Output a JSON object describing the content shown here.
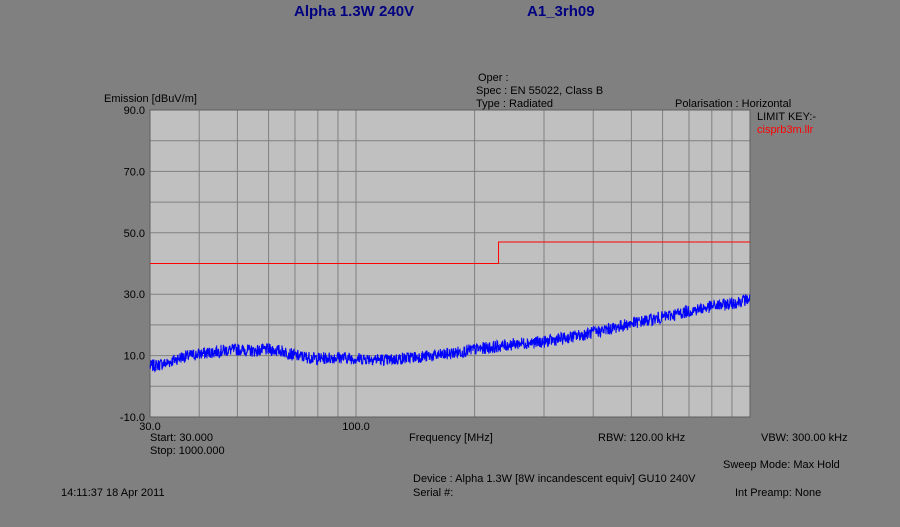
{
  "header": {
    "title_left": "Alpha 1.3W 240V",
    "title_right": "A1_3rh09",
    "oper": "Oper :",
    "spec": "Spec : EN 55022, Class B",
    "type": "Type : Radiated",
    "polarisation": "Polarisation : Horizontal",
    "limit_key_label": "LIMIT KEY:-",
    "limit_file": "cisprb3m.llr"
  },
  "colors": {
    "background": "#808080",
    "plot_area": "#c0c0c0",
    "gridline": "#808080",
    "trace": "#0000ff",
    "limit": "#ff0000",
    "title": "#000080"
  },
  "chart_data": {
    "type": "line",
    "ylabel": "Emission [dBuV/m]",
    "xlabel": "Frequency [MHz]",
    "x_scale": "log",
    "xlim": [
      30,
      1000
    ],
    "ylim": [
      -10,
      90
    ],
    "y_ticks": [
      "90.0",
      "70.0",
      "50.0",
      "30.0",
      "10.0",
      "-10.0"
    ],
    "x_tick_labels": [
      {
        "value": 30,
        "label": "30.0"
      },
      {
        "value": 100,
        "label": "100.0"
      }
    ],
    "grid": true,
    "series": [
      {
        "kind": "trace",
        "x": [
          30,
          33,
          36,
          40,
          45,
          50,
          55,
          60,
          65,
          70,
          80,
          90,
          100,
          110,
          120,
          140,
          160,
          180,
          200,
          230,
          260,
          300,
          350,
          400,
          450,
          500,
          550,
          600,
          700,
          800,
          900,
          1000
        ],
        "y": [
          6.5,
          7.5,
          9.5,
          10.5,
          11.5,
          12,
          11.5,
          12,
          11.5,
          10,
          9,
          9.5,
          9,
          9,
          8.5,
          9.5,
          10,
          11,
          12,
          13,
          14,
          14.5,
          16,
          17.5,
          19,
          20.5,
          21.5,
          22.5,
          24.5,
          26,
          27,
          28.5
        ]
      },
      {
        "kind": "limit",
        "x": [
          30,
          230,
          230,
          1000
        ],
        "y": [
          40,
          40,
          47,
          47
        ]
      }
    ]
  },
  "footer": {
    "start": "Start: 30.000",
    "stop": "Stop: 1000.000",
    "rbw": "RBW: 120.00 kHz",
    "vbw": "VBW: 300.00 kHz",
    "sweep_mode": "Sweep Mode: Max Hold",
    "device": "Device : Alpha 1.3W [8W incandescent equiv] GU10 240V",
    "serial": "Serial #:",
    "int_preamp": "Int Preamp: None",
    "timestamp": "14:11:37 18 Apr 2011"
  }
}
